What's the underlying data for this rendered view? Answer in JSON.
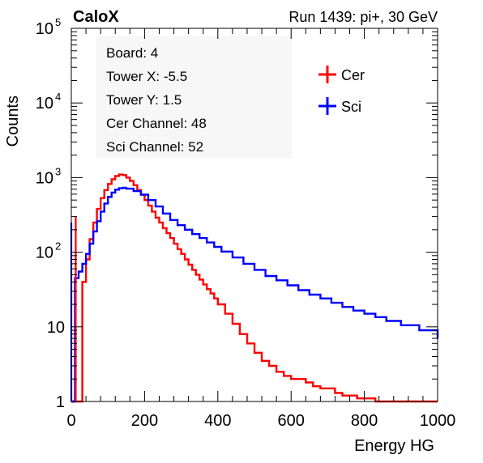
{
  "header": {
    "experiment": "CaloX",
    "run_info": "Run 1439: pi+, 30 GeV"
  },
  "info_box": {
    "lines": [
      "Board: 4",
      "Tower X: -5.5",
      "Tower Y: 1.5",
      "Cer Channel: 48",
      "Sci Channel: 52"
    ]
  },
  "colors": {
    "cer": "#ff0000",
    "sci": "#0000ff",
    "axis": "#000000"
  },
  "chart_data": {
    "type": "line",
    "title": "",
    "xlabel": "Energy HG",
    "ylabel": "Counts",
    "xlim": [
      0,
      1000
    ],
    "ylim": [
      1,
      100000
    ],
    "yscale": "log",
    "grid": false,
    "legend_position": "top-right",
    "x_ticks": [
      "0",
      "200",
      "400",
      "600",
      "800",
      "1000"
    ],
    "y_ticks": [
      {
        "base": "1",
        "exp": ""
      },
      {
        "base": "10",
        "exp": ""
      },
      {
        "base": "10",
        "exp": "2"
      },
      {
        "base": "10",
        "exp": "3"
      },
      {
        "base": "10",
        "exp": "4"
      },
      {
        "base": "10",
        "exp": "5"
      }
    ],
    "series": [
      {
        "name": "Cer",
        "color": "#ff0000",
        "x": [
          0,
          5,
          10,
          15,
          20,
          30,
          40,
          50,
          60,
          70,
          80,
          90,
          100,
          110,
          120,
          130,
          140,
          150,
          160,
          170,
          180,
          190,
          200,
          210,
          220,
          230,
          240,
          250,
          260,
          270,
          280,
          290,
          300,
          310,
          320,
          330,
          340,
          350,
          360,
          370,
          380,
          390,
          400,
          420,
          440,
          460,
          480,
          500,
          520,
          540,
          560,
          580,
          600,
          620,
          640,
          660,
          680,
          700,
          720,
          740,
          760,
          780,
          800,
          830,
          860,
          900,
          950,
          1000
        ],
        "y": [
          1,
          1,
          1,
          1,
          1,
          40,
          80,
          150,
          250,
          380,
          530,
          680,
          820,
          950,
          1050,
          1100,
          1080,
          1000,
          900,
          790,
          680,
          590,
          500,
          420,
          350,
          290,
          250,
          210,
          180,
          155,
          130,
          110,
          95,
          80,
          68,
          58,
          50,
          43,
          37,
          32,
          28,
          24,
          20,
          15,
          11,
          8,
          6,
          4.5,
          3.5,
          3,
          2.5,
          2.2,
          2,
          2,
          1.8,
          1.6,
          1.5,
          1.5,
          1.3,
          1.2,
          1.2,
          1.1,
          1.1,
          1,
          1,
          1,
          1,
          1
        ]
      },
      {
        "name": "Sci",
        "color": "#0000ff",
        "x": [
          0,
          5,
          10,
          20,
          30,
          40,
          50,
          60,
          70,
          80,
          90,
          100,
          110,
          120,
          130,
          140,
          150,
          170,
          190,
          210,
          230,
          250,
          270,
          290,
          310,
          330,
          350,
          370,
          390,
          410,
          440,
          470,
          500,
          530,
          560,
          590,
          620,
          650,
          680,
          710,
          740,
          770,
          800,
          830,
          860,
          900,
          950,
          1000
        ],
        "y": [
          1,
          1,
          45,
          55,
          70,
          95,
          130,
          190,
          260,
          350,
          450,
          550,
          630,
          690,
          720,
          730,
          710,
          660,
          590,
          500,
          410,
          330,
          270,
          230,
          200,
          175,
          155,
          135,
          118,
          102,
          85,
          70,
          58,
          48,
          42,
          36,
          31,
          27,
          24,
          21,
          18.5,
          16.5,
          15,
          13.5,
          12,
          10.5,
          9,
          7
        ]
      }
    ]
  }
}
